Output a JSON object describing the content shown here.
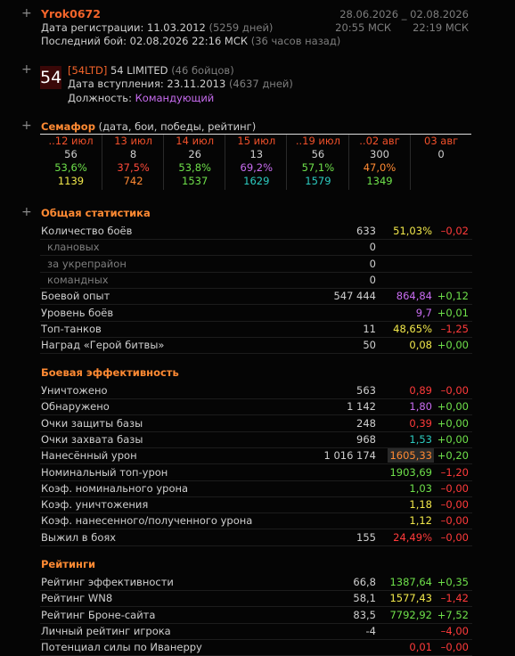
{
  "header": {
    "plus": "+",
    "nick": "Yrok0672",
    "reg_label": "Дата регистрации: 11.03.2012",
    "reg_days": "(5259 дней)",
    "last_label": "Последний бой: 02.08.2026 22:16 МСК",
    "last_ago": "(36 часов назад)",
    "from_date": "28.06.2026",
    "sep": "_",
    "to_date": "02.08.2026",
    "from_time": "20:55 МСК",
    "to_time": "22:19 МСК"
  },
  "clan": {
    "plus": "+",
    "icon": "54",
    "tag": "[54LTD]",
    "name": "54 LIMITED",
    "members": "(46 бойцов)",
    "join_label": "Дата вступления: 23.11.2013",
    "join_days": "(4637 дней)",
    "role_label": "Должность:",
    "role": "Командующий"
  },
  "semaphore": {
    "plus": "+",
    "title": "Семафор",
    "subtitle": "(дата, бои, победы, рейтинг)",
    "date_color": "#f0502a",
    "columns": [
      {
        "date": "..12 июл",
        "battles": "56",
        "winrate": "53,6%",
        "winrate_color": "#6ee04a",
        "rating": "1139",
        "rating_color": "#f2e84a"
      },
      {
        "date": "13 июл",
        "battles": "8",
        "winrate": "37,5%",
        "winrate_color": "#ff4a3a",
        "rating": "742",
        "rating_color": "#ff8a33"
      },
      {
        "date": "14 июл",
        "battles": "26",
        "winrate": "53,8%",
        "winrate_color": "#6ee04a",
        "rating": "1537",
        "rating_color": "#6ee04a"
      },
      {
        "date": "15 июл",
        "battles": "13",
        "winrate": "69,2%",
        "winrate_color": "#c86cf0",
        "rating": "1629",
        "rating_color": "#2ccbc0"
      },
      {
        "date": "..19 июл",
        "battles": "56",
        "winrate": "57,1%",
        "winrate_color": "#6ee04a",
        "rating": "1579",
        "rating_color": "#2ccbc0"
      },
      {
        "date": "..02 авг",
        "battles": "300",
        "winrate": "47,0%",
        "winrate_color": "#ff8a33",
        "rating": "1349",
        "rating_color": "#6ee04a"
      },
      {
        "date": "03 авг",
        "battles": "0"
      }
    ]
  },
  "sections": [
    {
      "plus": "+",
      "title": "Общая статистика",
      "rows": [
        {
          "label": "Количество боёв",
          "value": "633",
          "rate": "51,03%",
          "rate_color": "#f2e84a",
          "delta": "–0,02",
          "delta_color": "#ff3a3a"
        },
        {
          "label": "клановых",
          "value": "0",
          "indent": true
        },
        {
          "label": "за укрепрайон",
          "value": "0",
          "indent": true
        },
        {
          "label": "командных",
          "value": "0",
          "indent": true
        },
        {
          "label": "Боевой опыт",
          "value": "547 444",
          "rate": "864,84",
          "rate_color": "#c86cf0",
          "delta": "+0,12",
          "delta_color": "#6ee04a"
        },
        {
          "label": "Уровень боёв",
          "rate": "9,7",
          "rate_color": "#c86cf0",
          "delta": "+0,01",
          "delta_color": "#6ee04a"
        },
        {
          "label": "Топ-танков",
          "value": "11",
          "rate": "48,65%",
          "rate_color": "#f2e84a",
          "delta": "–1,25",
          "delta_color": "#ff3a3a"
        },
        {
          "label": "Наград «Герой битвы»",
          "value": "50",
          "rate": "0,08",
          "rate_color": "#f2e84a",
          "delta": "+0,00",
          "delta_color": "#6ee04a"
        }
      ]
    },
    {
      "title": "Боевая эффективность",
      "rows": [
        {
          "label": "Уничтожено",
          "value": "563",
          "rate": "0,89",
          "rate_color": "#ff3a3a",
          "delta": "–0,00",
          "delta_color": "#ff3a3a"
        },
        {
          "label": "Обнаружено",
          "value": "1 142",
          "rate": "1,80",
          "rate_color": "#c86cf0",
          "delta": "+0,00",
          "delta_color": "#6ee04a"
        },
        {
          "label": "Очки защиты базы",
          "value": "248",
          "rate": "0,39",
          "rate_color": "#ff3a3a",
          "delta": "+0,00",
          "delta_color": "#6ee04a"
        },
        {
          "label": "Очки захвата базы",
          "value": "968",
          "rate": "1,53",
          "rate_color": "#2ccbc0",
          "delta": "+0,00",
          "delta_color": "#6ee04a"
        },
        {
          "label": "Нанесённый урон",
          "value": "1 016 174",
          "rate": "1605,33",
          "rate_color": "#ff8a33",
          "highlight": true,
          "delta": "+0,20",
          "delta_color": "#6ee04a"
        },
        {
          "label": "Номинальный топ-урон",
          "rate": "1903,69",
          "rate_color": "#6ee04a",
          "delta": "–1,20",
          "delta_color": "#ff3a3a"
        },
        {
          "label": "Коэф. номинального урона",
          "rate": "1,03",
          "rate_color": "#6ee04a",
          "delta": "–0,00",
          "delta_color": "#ff3a3a"
        },
        {
          "label": "Коэф. уничтожения",
          "rate": "1,18",
          "rate_color": "#f2e84a",
          "delta": "–0,00",
          "delta_color": "#ff3a3a"
        },
        {
          "label": "Коэф. нанесенного/полученного урона",
          "rate": "1,12",
          "rate_color": "#f2e84a",
          "delta": "–0,00",
          "delta_color": "#ff3a3a"
        },
        {
          "label": "Выжил в боях",
          "value": "155",
          "rate": "24,49%",
          "rate_color": "#ff3a3a",
          "delta": "–0,00",
          "delta_color": "#ff3a3a"
        }
      ]
    },
    {
      "title": "Рейтинги",
      "rows": [
        {
          "label": "Рейтинг эффективности",
          "value": "66,8",
          "rate": "1387,64",
          "rate_color": "#6ee04a",
          "delta": "+0,35",
          "delta_color": "#6ee04a"
        },
        {
          "label": "Рейтинг WN8",
          "value": "58,1",
          "rate": "1577,43",
          "rate_color": "#f2e84a",
          "delta": "–1,42",
          "delta_color": "#ff3a3a"
        },
        {
          "label": "Рейтинг Броне-сайта",
          "value": "83,5",
          "rate": "7792,92",
          "rate_color": "#6ee04a",
          "delta": "+7,52",
          "delta_color": "#6ee04a"
        },
        {
          "label": "Личный рейтинг игрока",
          "value": "-4",
          "delta": "–4,00",
          "delta_color": "#ff3a3a"
        },
        {
          "label": "Потенциал силы по Иванерру",
          "rate": "0,01",
          "rate_color": "#ff3a3a",
          "delta": "–0,00",
          "delta_color": "#ff3a3a"
        }
      ]
    }
  ]
}
